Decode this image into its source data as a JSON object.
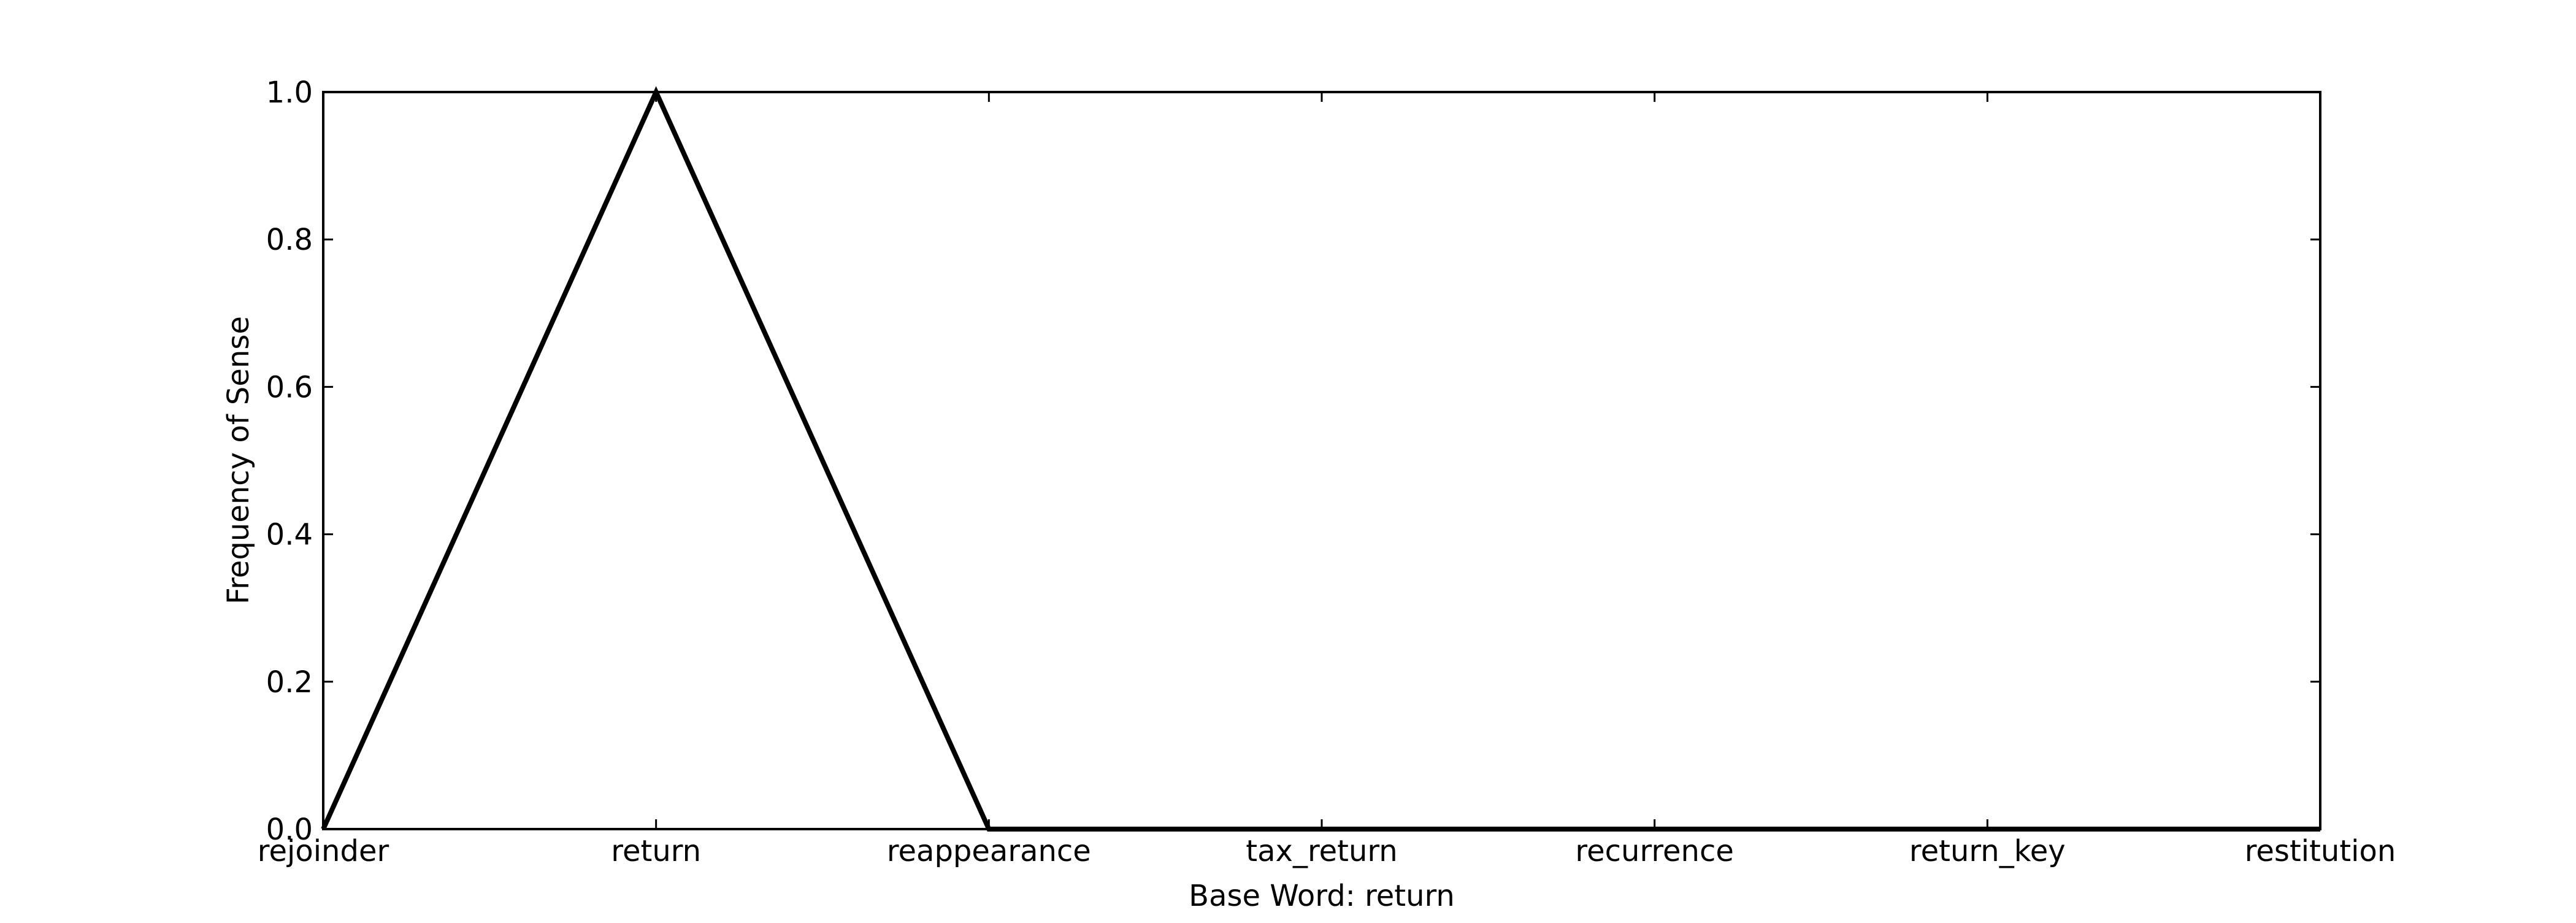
{
  "chart_data": {
    "type": "line",
    "title": "",
    "xlabel": "Base Word: return",
    "ylabel": "Frequency of Sense",
    "categories": [
      "rejoinder",
      "return",
      "reappearance",
      "tax_return",
      "recurrence",
      "return_key",
      "restitution"
    ],
    "series": [
      {
        "values": [
          0.0,
          1.0,
          0.0,
          0.0,
          0.0,
          0.0,
          0.0
        ]
      }
    ],
    "ylim": [
      0.0,
      1.0
    ],
    "yticks": [
      "0.0",
      "0.2",
      "0.4",
      "0.6",
      "0.8",
      "1.0"
    ],
    "grid": false,
    "line_color": "#000000"
  }
}
